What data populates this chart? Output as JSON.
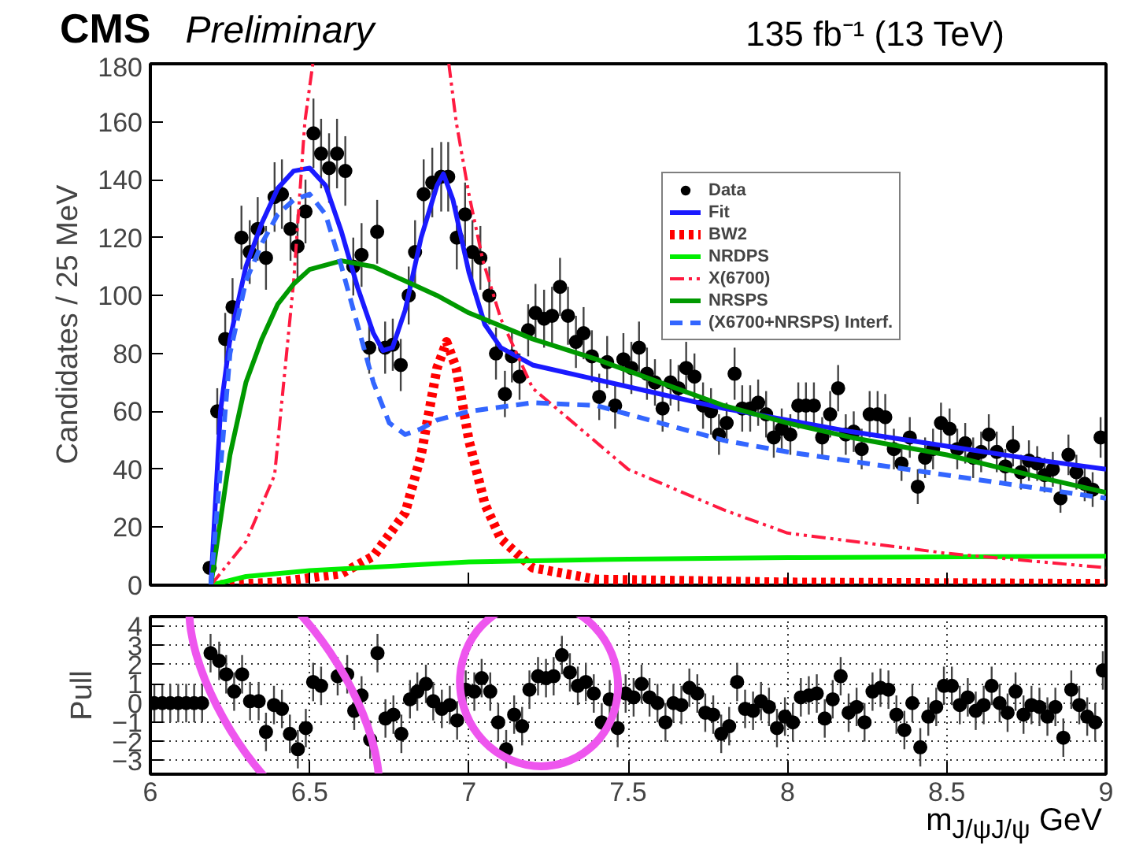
{
  "chart_data": [
    {
      "type": "line",
      "ylabel": "Candidates / 25 MeV",
      "xlim": [
        6,
        9
      ],
      "ylim": [
        0,
        180
      ],
      "xticks": [
        {
          "value": 6,
          "label": null
        },
        {
          "value": 6.5,
          "label": null
        },
        {
          "value": 7,
          "label": null
        },
        {
          "value": 7.5,
          "label": null
        },
        {
          "value": 8,
          "label": null
        },
        {
          "value": 8.5,
          "label": null
        },
        {
          "value": 9,
          "label": null
        }
      ],
      "yticks": [
        0,
        20,
        40,
        60,
        80,
        100,
        120,
        140,
        160,
        180
      ],
      "tick_labels": "y",
      "grid": false,
      "legend": "top right",
      "annotations": [
        "CMS",
        "Preliminary",
        "135 fb⁻¹ (13 TeV)"
      ],
      "series": [
        {
          "name": "Data",
          "type": "scatter",
          "color": "#000000",
          "marker": "circle",
          "x": [
            6.186,
            6.21,
            6.235,
            6.258,
            6.286,
            6.312,
            6.337,
            6.363,
            6.39,
            6.413,
            6.44,
            6.462,
            6.487,
            6.512,
            6.536,
            6.561,
            6.586,
            6.612,
            6.637,
            6.663,
            6.687,
            6.712,
            6.737,
            6.761,
            6.786,
            6.811,
            6.831,
            6.858,
            6.885,
            6.913,
            6.935,
            6.962,
            6.988,
            7.011,
            7.036,
            7.064,
            7.085,
            7.113,
            7.135,
            7.159,
            7.186,
            7.209,
            7.236,
            7.261,
            7.286,
            7.311,
            7.336,
            7.36,
            7.386,
            7.409,
            7.434,
            7.459,
            7.485,
            7.51,
            7.534,
            7.559,
            7.584,
            7.608,
            7.633,
            7.658,
            7.682,
            7.708,
            7.735,
            7.76,
            7.785,
            7.809,
            7.834,
            7.858,
            7.883,
            7.908,
            7.933,
            7.957,
            7.982,
            8.009,
            8.034,
            8.058,
            8.083,
            8.109,
            8.134,
            8.159,
            8.183,
            8.208,
            8.233,
            8.258,
            8.283,
            8.307,
            8.334,
            8.358,
            8.384,
            8.409,
            8.432,
            8.457,
            8.482,
            8.509,
            8.533,
            8.558,
            8.583,
            8.608,
            8.632,
            8.657,
            8.684,
            8.708,
            8.733,
            8.758,
            8.784,
            8.807,
            8.833,
            8.857,
            8.882,
            8.907,
            8.933,
            8.958,
            8.983
          ],
          "values": [
            6,
            60,
            85,
            96,
            120,
            115,
            123,
            113,
            134,
            135,
            123,
            117,
            129,
            156,
            149,
            144,
            149,
            143,
            110,
            114,
            82,
            122,
            82,
            83,
            76,
            100,
            115,
            135,
            139,
            141,
            141,
            120,
            128,
            115,
            113,
            100,
            80,
            66,
            79,
            72,
            88,
            94,
            92,
            93,
            103,
            93,
            84,
            87,
            79,
            65,
            77,
            62,
            78,
            75,
            82,
            73,
            70,
            61,
            70,
            68,
            75,
            72,
            62,
            60,
            52,
            56,
            73,
            61,
            61,
            63,
            59,
            51,
            54,
            52,
            62,
            62,
            62,
            51,
            59,
            68,
            52,
            53,
            47,
            59,
            59,
            58,
            47,
            42,
            51,
            34,
            44,
            47,
            56,
            54,
            47,
            49,
            44,
            46,
            52,
            46,
            41,
            48,
            39,
            43,
            42,
            38,
            40,
            30,
            45,
            39,
            35,
            33,
            51
          ],
          "errors": [
            2,
            8,
            9,
            10,
            11,
            11,
            11,
            11,
            12,
            12,
            11,
            11,
            11,
            12,
            12,
            12,
            12,
            12,
            10,
            11,
            9,
            11,
            9,
            9,
            9,
            10,
            11,
            12,
            12,
            12,
            12,
            11,
            11,
            11,
            11,
            10,
            9,
            8,
            9,
            8,
            9,
            10,
            10,
            10,
            10,
            10,
            9,
            9,
            9,
            8,
            9,
            8,
            9,
            9,
            9,
            9,
            8,
            8,
            8,
            8,
            9,
            8,
            8,
            8,
            7,
            7,
            9,
            8,
            8,
            8,
            8,
            7,
            7,
            7,
            8,
            8,
            8,
            7,
            8,
            8,
            7,
            7,
            7,
            8,
            8,
            8,
            7,
            6,
            7,
            6,
            7,
            7,
            7,
            7,
            7,
            7,
            7,
            7,
            7,
            7,
            6,
            7,
            6,
            7,
            6,
            6,
            6,
            5,
            7,
            6,
            6,
            6,
            7
          ]
        },
        {
          "name": "Fit",
          "type": "line",
          "color": "#1a1aff",
          "line_style": "solid",
          "x": [
            6.19,
            6.2,
            6.22,
            6.25,
            6.3,
            6.35,
            6.4,
            6.45,
            6.5,
            6.55,
            6.6,
            6.65,
            6.7,
            6.73,
            6.76,
            6.8,
            6.85,
            6.9,
            6.92,
            6.95,
            7.0,
            7.05,
            7.1,
            7.2,
            7.4,
            7.6,
            7.8,
            8.0,
            8.2,
            8.5,
            8.8,
            9.0
          ],
          "values": [
            0,
            20,
            60,
            85,
            110,
            125,
            137,
            143,
            144,
            138,
            122,
            103,
            87,
            81,
            82,
            95,
            120,
            138,
            142,
            133,
            108,
            90,
            82,
            76,
            71,
            66,
            61,
            57,
            53,
            48,
            43,
            40
          ]
        },
        {
          "name": "BW2",
          "type": "line",
          "color": "#ff0000",
          "line_style": "dotted",
          "x": [
            6.19,
            6.4,
            6.6,
            6.7,
            6.8,
            6.85,
            6.9,
            6.93,
            6.96,
            7.0,
            7.05,
            7.1,
            7.2,
            7.4,
            8.0,
            9.0
          ],
          "values": [
            0,
            1,
            4,
            10,
            25,
            45,
            75,
            84,
            75,
            50,
            28,
            16,
            6,
            2,
            1,
            0.5
          ]
        },
        {
          "name": "NRDPS",
          "type": "line",
          "color": "#00ee00",
          "line_style": "solid",
          "x": [
            6.19,
            6.3,
            6.5,
            7.0,
            7.5,
            8.0,
            9.0
          ],
          "values": [
            0,
            3,
            5,
            8,
            9,
            9.5,
            10
          ]
        },
        {
          "name": "X(6700)",
          "type": "line",
          "color": "#ff1a40",
          "line_style": "dashdot",
          "x": [
            6.19,
            6.3,
            6.39,
            6.45,
            6.485,
            6.51,
            6.52,
            6.9,
            6.937,
            6.96,
            7.0,
            7.044,
            7.1,
            7.2,
            7.5,
            7.8,
            8.0,
            8.5,
            9.0
          ],
          "values": [
            0,
            15,
            38,
            105,
            160,
            180,
            null,
            null,
            180,
            160,
            135,
            112,
            92,
            68,
            40,
            26,
            18,
            11,
            6
          ]
        },
        {
          "name": "NRSPS",
          "type": "line",
          "color": "#009900",
          "line_style": "solid",
          "x": [
            6.19,
            6.25,
            6.3,
            6.35,
            6.4,
            6.45,
            6.5,
            6.6,
            6.7,
            6.8,
            6.9,
            7.0,
            7.2,
            7.4,
            7.6,
            7.8,
            8.0,
            8.2,
            8.5,
            8.8,
            9.0
          ],
          "values": [
            0,
            45,
            70,
            85,
            97,
            104,
            109,
            112,
            110,
            105,
            100,
            94,
            85,
            78,
            70,
            62,
            56,
            51,
            45,
            37,
            32
          ]
        },
        {
          "name": "(X6700+NRSPS) Interf.",
          "type": "line",
          "color": "#3366ff",
          "line_style": "dashed",
          "x": [
            6.19,
            6.25,
            6.3,
            6.35,
            6.4,
            6.45,
            6.5,
            6.55,
            6.6,
            6.65,
            6.7,
            6.75,
            6.8,
            6.85,
            6.9,
            7.0,
            7.2,
            7.4,
            7.6,
            7.8,
            8.0,
            8.5,
            9.0
          ],
          "values": [
            0,
            80,
            105,
            118,
            128,
            133,
            135,
            128,
            110,
            90,
            70,
            56,
            52,
            54,
            57,
            60,
            63,
            62,
            56,
            50,
            46,
            38,
            30
          ]
        }
      ]
    },
    {
      "type": "scatter",
      "ylabel": "Pull",
      "xlabel": "m$_{J/ψJ/ψ}$ GeV",
      "xlim": [
        6,
        9
      ],
      "ylim": [
        -3.7,
        4.5
      ],
      "xticks": [
        6,
        6.5,
        7,
        7.5,
        8,
        8.5,
        9
      ],
      "yticks": [
        -3,
        -2,
        -1,
        0,
        1,
        2,
        3,
        4
      ],
      "grid": true,
      "marker": "circle",
      "color": "#000000",
      "x": [
        6.0125,
        6.0375,
        6.0625,
        6.0875,
        6.1125,
        6.1375,
        6.1625,
        6.189,
        6.216,
        6.238,
        6.263,
        6.288,
        6.313,
        6.34,
        6.363,
        6.388,
        6.413,
        6.438,
        6.463,
        6.488,
        6.511,
        6.536,
        6.588,
        6.618,
        6.64,
        6.663,
        6.69,
        6.713,
        6.738,
        6.763,
        6.788,
        6.815,
        6.838,
        6.865,
        6.888,
        6.915,
        6.94,
        6.963,
        6.99,
        7.017,
        7.04,
        7.067,
        7.092,
        7.117,
        7.142,
        7.167,
        7.19,
        7.217,
        7.242,
        7.266,
        7.292,
        7.317,
        7.342,
        7.367,
        7.392,
        7.417,
        7.442,
        7.467,
        7.492,
        7.517,
        7.542,
        7.567,
        7.592,
        7.617,
        7.642,
        7.667,
        7.692,
        7.717,
        7.742,
        7.767,
        7.792,
        7.817,
        7.842,
        7.867,
        7.892,
        7.917,
        7.942,
        7.967,
        7.992,
        8.017,
        8.042,
        8.067,
        8.092,
        8.117,
        8.142,
        8.167,
        8.192,
        8.217,
        8.242,
        8.267,
        8.292,
        8.317,
        8.342,
        8.367,
        8.392,
        8.417,
        8.442,
        8.467,
        8.491,
        8.516,
        8.541,
        8.566,
        8.591,
        8.616,
        8.641,
        8.666,
        8.691,
        8.716,
        8.741,
        8.766,
        8.791,
        8.816,
        8.841,
        8.866,
        8.891,
        8.916,
        8.941,
        8.966,
        8.99
      ],
      "values": [
        0,
        0,
        0,
        0,
        0,
        0,
        0,
        2.6,
        2.2,
        1.5,
        0.6,
        1.5,
        0.1,
        0.1,
        -1.5,
        -0.1,
        -0.3,
        -1.6,
        -2.4,
        -1.3,
        1.1,
        0.9,
        1.4,
        1.5,
        -0.4,
        0.4,
        -1.9,
        2.6,
        -0.8,
        -0.6,
        -1.6,
        0.2,
        0.6,
        1.0,
        0.1,
        -0.3,
        -0.1,
        -0.9,
        0.7,
        0.6,
        1.3,
        0.6,
        -1.0,
        -2.4,
        -0.6,
        -1.2,
        0.7,
        1.4,
        1.3,
        1.4,
        2.5,
        1.6,
        0.9,
        1.1,
        0.5,
        -1.0,
        0.2,
        -1.3,
        0.5,
        0.3,
        1.0,
        0.3,
        0,
        -1.0,
        0,
        -0.1,
        0.8,
        0.5,
        -0.5,
        -0.6,
        -1.6,
        -1.2,
        1.1,
        -0.3,
        -0.4,
        0.1,
        -0.2,
        -1.3,
        -0.7,
        -1.0,
        0.3,
        0.4,
        0.5,
        -0.8,
        0.2,
        1.4,
        -0.5,
        -0.2,
        -1.0,
        0.6,
        0.8,
        0.7,
        -0.6,
        -1.4,
        0,
        -2.3,
        -0.7,
        -0.2,
        0.9,
        0.9,
        -0.1,
        0.3,
        -0.4,
        -0.1,
        0.9,
        0,
        -0.5,
        0.6,
        -0.6,
        -0.1,
        -0.2,
        -0.7,
        -0.2,
        -1.8,
        0.7,
        -0.1,
        -0.7,
        -1.0,
        1.7
      ],
      "errors": [
        1,
        1,
        1,
        1,
        1,
        1,
        1,
        1,
        1,
        1,
        1,
        1,
        1,
        1,
        1,
        1,
        1,
        1,
        1,
        1,
        1,
        1,
        1,
        1,
        1,
        1,
        1,
        1,
        1,
        1,
        1,
        1,
        1,
        1,
        1,
        1,
        1,
        1,
        1,
        1,
        1,
        1,
        1,
        1,
        1,
        1,
        1,
        1,
        1,
        1,
        1,
        1,
        1,
        1,
        1,
        1,
        1,
        1,
        1,
        1,
        1,
        1,
        1,
        1,
        1,
        1,
        1,
        1,
        1,
        1,
        1,
        1,
        1,
        1,
        1,
        1,
        1,
        1,
        1,
        1,
        1,
        1,
        1,
        1,
        1,
        1,
        1,
        1,
        1,
        1,
        1,
        1,
        1,
        1,
        1,
        1,
        1,
        1,
        1,
        1,
        1,
        1,
        1,
        1,
        1,
        1,
        1,
        1,
        1,
        1,
        1,
        1,
        1,
        1,
        1,
        1,
        1,
        1,
        1
      ]
    }
  ]
}
